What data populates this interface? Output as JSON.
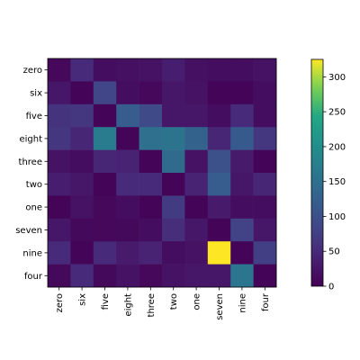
{
  "chart_data": {
    "type": "heatmap",
    "title": "",
    "xlabel": "",
    "ylabel": "",
    "x_categories": [
      "zero",
      "six",
      "five",
      "eight",
      "three",
      "two",
      "one",
      "seven",
      "nine",
      "four"
    ],
    "y_categories": [
      "zero",
      "six",
      "five",
      "eight",
      "three",
      "two",
      "one",
      "seven",
      "nine",
      "four"
    ],
    "values": [
      [
        8,
        50,
        15,
        18,
        20,
        35,
        18,
        15,
        15,
        20
      ],
      [
        25,
        5,
        85,
        15,
        8,
        25,
        20,
        5,
        5,
        15
      ],
      [
        60,
        65,
        5,
        120,
        90,
        25,
        25,
        15,
        50,
        15
      ],
      [
        65,
        45,
        170,
        5,
        150,
        155,
        130,
        45,
        115,
        65
      ],
      [
        20,
        15,
        45,
        40,
        5,
        140,
        20,
        100,
        30,
        5
      ],
      [
        35,
        25,
        5,
        50,
        50,
        5,
        40,
        120,
        25,
        45
      ],
      [
        5,
        20,
        8,
        15,
        5,
        70,
        5,
        30,
        15,
        15
      ],
      [
        25,
        10,
        8,
        10,
        15,
        55,
        25,
        5,
        80,
        25
      ],
      [
        50,
        5,
        50,
        30,
        40,
        15,
        20,
        325,
        5,
        75
      ],
      [
        10,
        50,
        10,
        20,
        8,
        20,
        25,
        25,
        160,
        5
      ]
    ],
    "colorbar": {
      "min": 0,
      "max": 325,
      "ticks": [
        0,
        50,
        100,
        150,
        200,
        250,
        300
      ]
    },
    "colormap": "viridis"
  }
}
